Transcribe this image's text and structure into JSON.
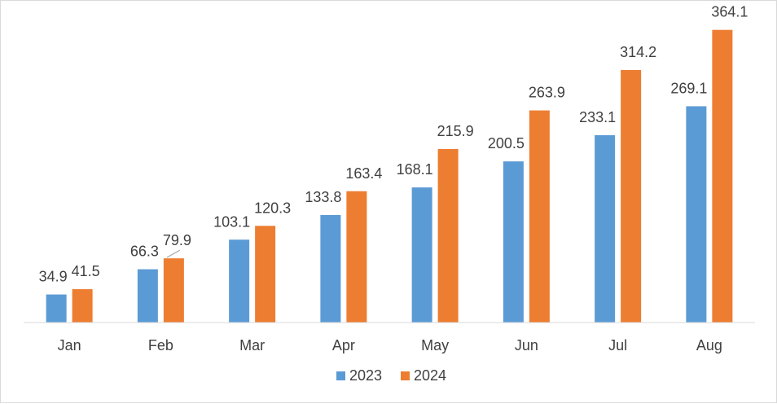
{
  "chart_data": {
    "type": "bar",
    "title": "",
    "xlabel": "",
    "ylabel": "",
    "categories": [
      "Jan",
      "Feb",
      "Mar",
      "Apr",
      "May",
      "Jun",
      "Jul",
      "Aug"
    ],
    "series": [
      {
        "name": "2023",
        "color": "#5b9bd5",
        "values": [
          34.9,
          66.3,
          103.1,
          133.8,
          168.1,
          200.5,
          233.1,
          269.1
        ]
      },
      {
        "name": "2024",
        "color": "#ed7d31",
        "values": [
          41.5,
          79.9,
          120.3,
          163.4,
          215.9,
          263.9,
          314.2,
          364.1
        ]
      }
    ],
    "ylim": [
      0,
      380
    ],
    "grid": false,
    "legend": "bottom",
    "data_labels": true
  }
}
